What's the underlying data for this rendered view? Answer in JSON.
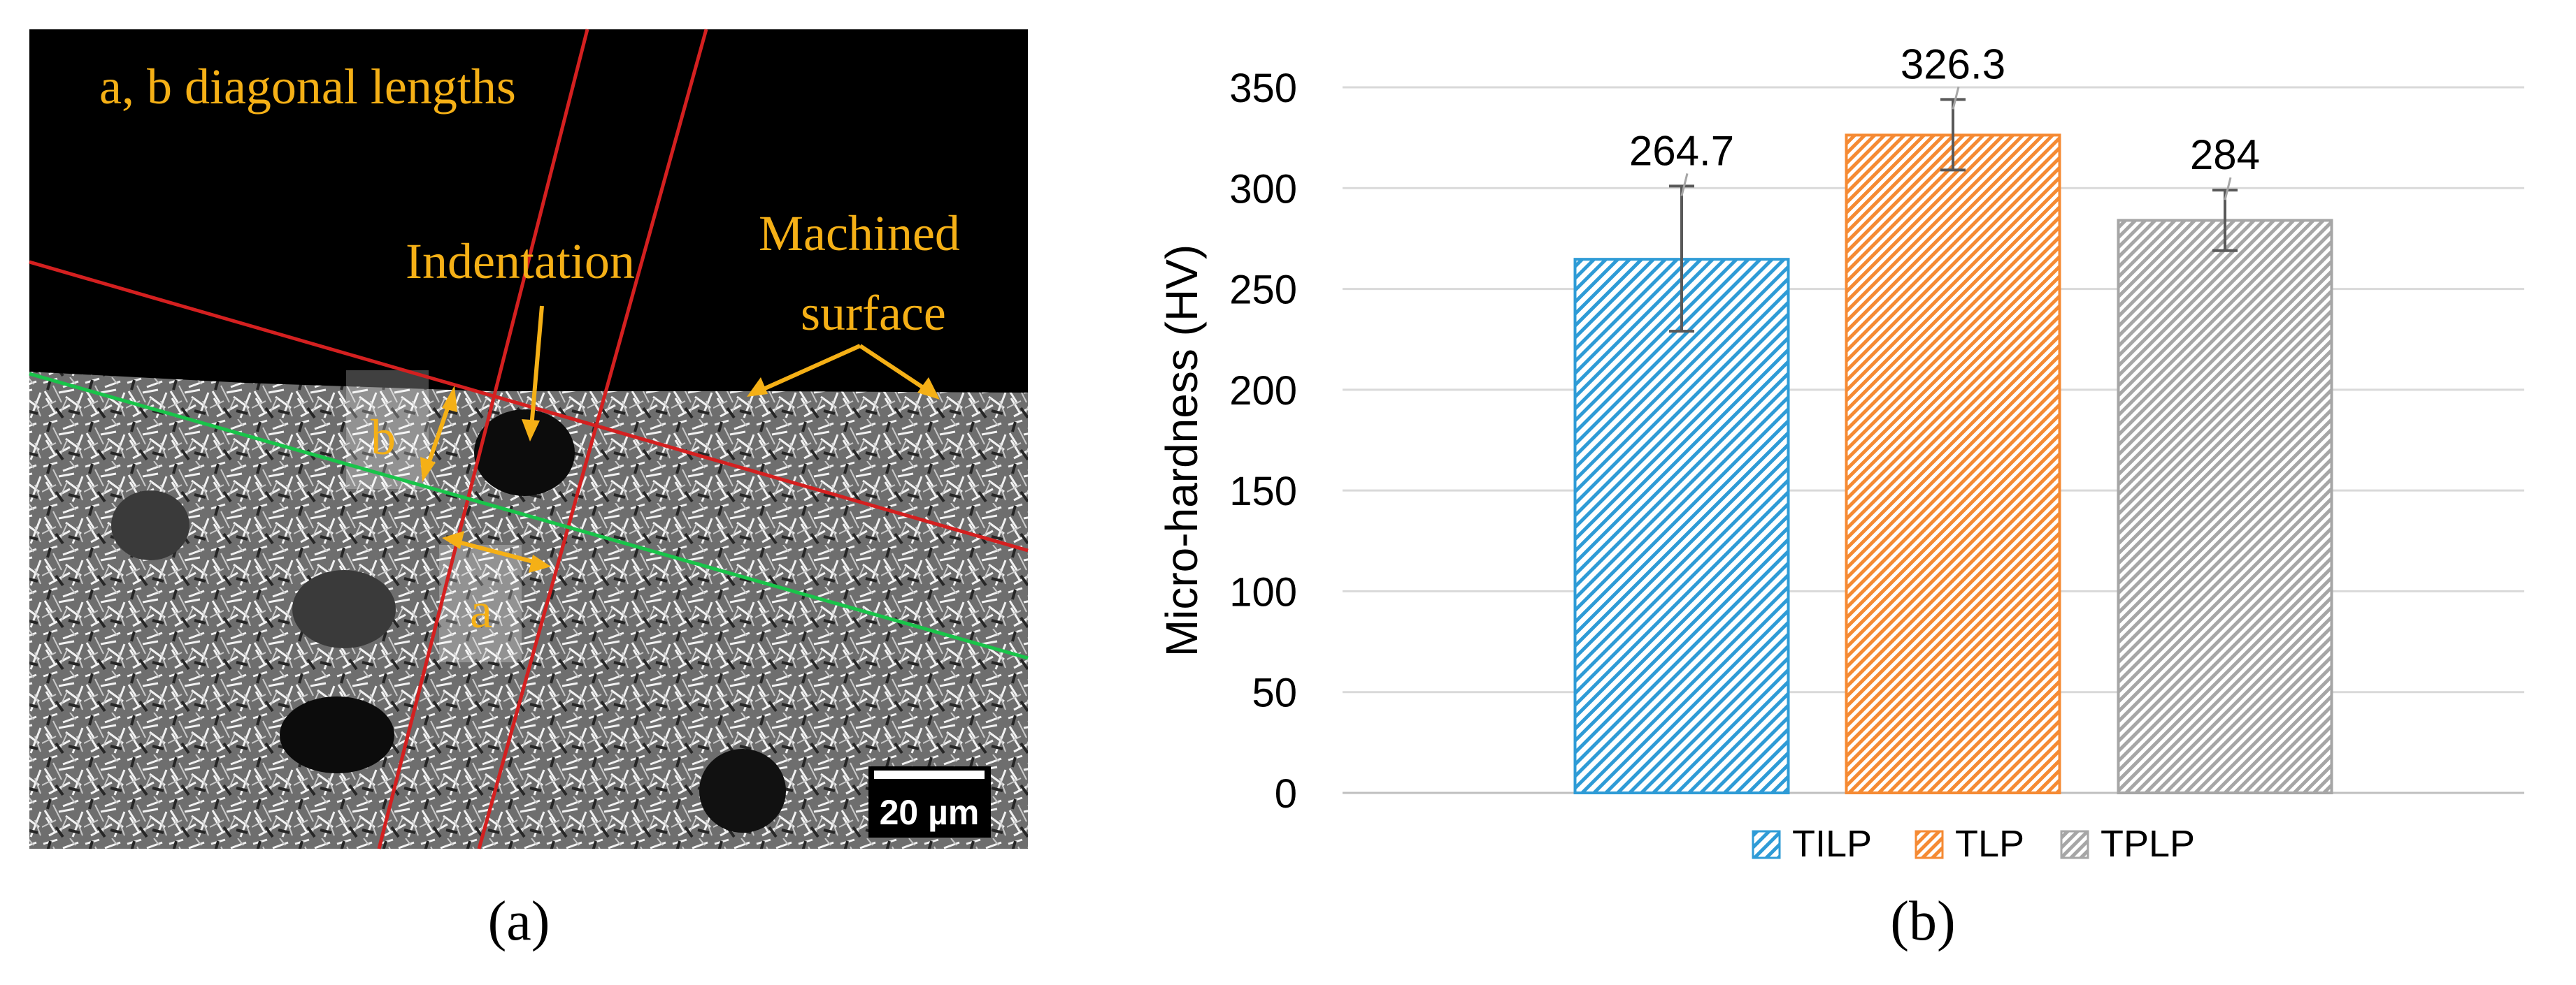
{
  "panel_a": {
    "caption": "(a)",
    "annotations": {
      "diagonal_note": "a, b diagonal lengths",
      "indentation": "Indentation",
      "machined_line1": "Machined",
      "machined_line2": "surface",
      "label_a": "a",
      "label_b": "b"
    },
    "scale_bar": "20 µm",
    "colors": {
      "annotation": "#F5B016",
      "guide_red": "#D42020",
      "guide_green": "#19C44A",
      "background": "#000000"
    }
  },
  "panel_b": {
    "caption": "(b)"
  },
  "chart_data": {
    "type": "bar",
    "title": "",
    "xlabel": "",
    "ylabel": "Micro-hardness (HV)",
    "ylim": [
      0,
      350
    ],
    "yticks": [
      0,
      50,
      100,
      150,
      200,
      250,
      300,
      350
    ],
    "grid": true,
    "legend_position": "bottom",
    "series": [
      {
        "name": "TILP",
        "value": 264.7,
        "label": "264.7",
        "error_low": 229,
        "error_high": 301,
        "color": "#2E9BD6",
        "pattern": "diagonal"
      },
      {
        "name": "TLP",
        "value": 326.3,
        "label": "326.3",
        "error_low": 309,
        "error_high": 344,
        "color": "#F58A33",
        "pattern": "diagonal"
      },
      {
        "name": "TPLP",
        "value": 284,
        "label": "284",
        "error_low": 269,
        "error_high": 299,
        "color": "#A6A6A6",
        "pattern": "diagonal"
      }
    ]
  }
}
